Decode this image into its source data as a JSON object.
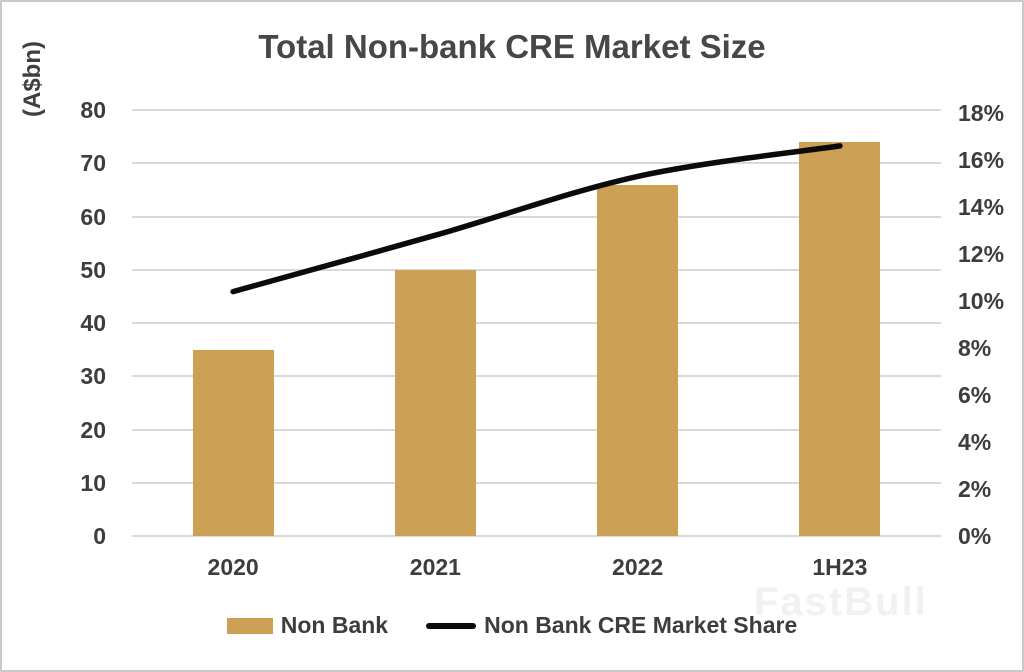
{
  "chart_data": {
    "type": "bar",
    "subtype": "combo-bar-line",
    "title": "Total Non-bank CRE Market Size",
    "left_axis_title": "(A$bn)",
    "categories": [
      "2020",
      "2021",
      "2022",
      "1H23"
    ],
    "series": [
      {
        "name": "Non Bank",
        "type": "bar",
        "axis": "left",
        "values": [
          35,
          50,
          66,
          74
        ]
      },
      {
        "name": "Non Bank CRE Market Share",
        "type": "line",
        "axis": "right",
        "values": [
          10.4,
          12.8,
          15.3,
          16.6
        ]
      }
    ],
    "left_axis": {
      "min": 0,
      "max": 80,
      "step": 10,
      "tick_labels": [
        "0",
        "10",
        "20",
        "30",
        "40",
        "50",
        "60",
        "70",
        "80"
      ]
    },
    "right_axis": {
      "min": 0,
      "max": 18,
      "step": 2,
      "tick_labels": [
        "0%",
        "2%",
        "4%",
        "6%",
        "8%",
        "10%",
        "12%",
        "14%",
        "16%",
        "18%"
      ]
    },
    "grid": "horizontal",
    "legend_position": "bottom",
    "colors": {
      "bar": "#CDA155",
      "line": "#0B0B0B",
      "grid": "#D9D9D9",
      "text": "#3D3D3D",
      "title": "#474747"
    }
  },
  "legend": {
    "items": [
      {
        "label": "Non Bank",
        "swatch": "bar"
      },
      {
        "label": "Non Bank CRE Market Share",
        "swatch": "line"
      }
    ]
  },
  "watermark": "FastBull"
}
